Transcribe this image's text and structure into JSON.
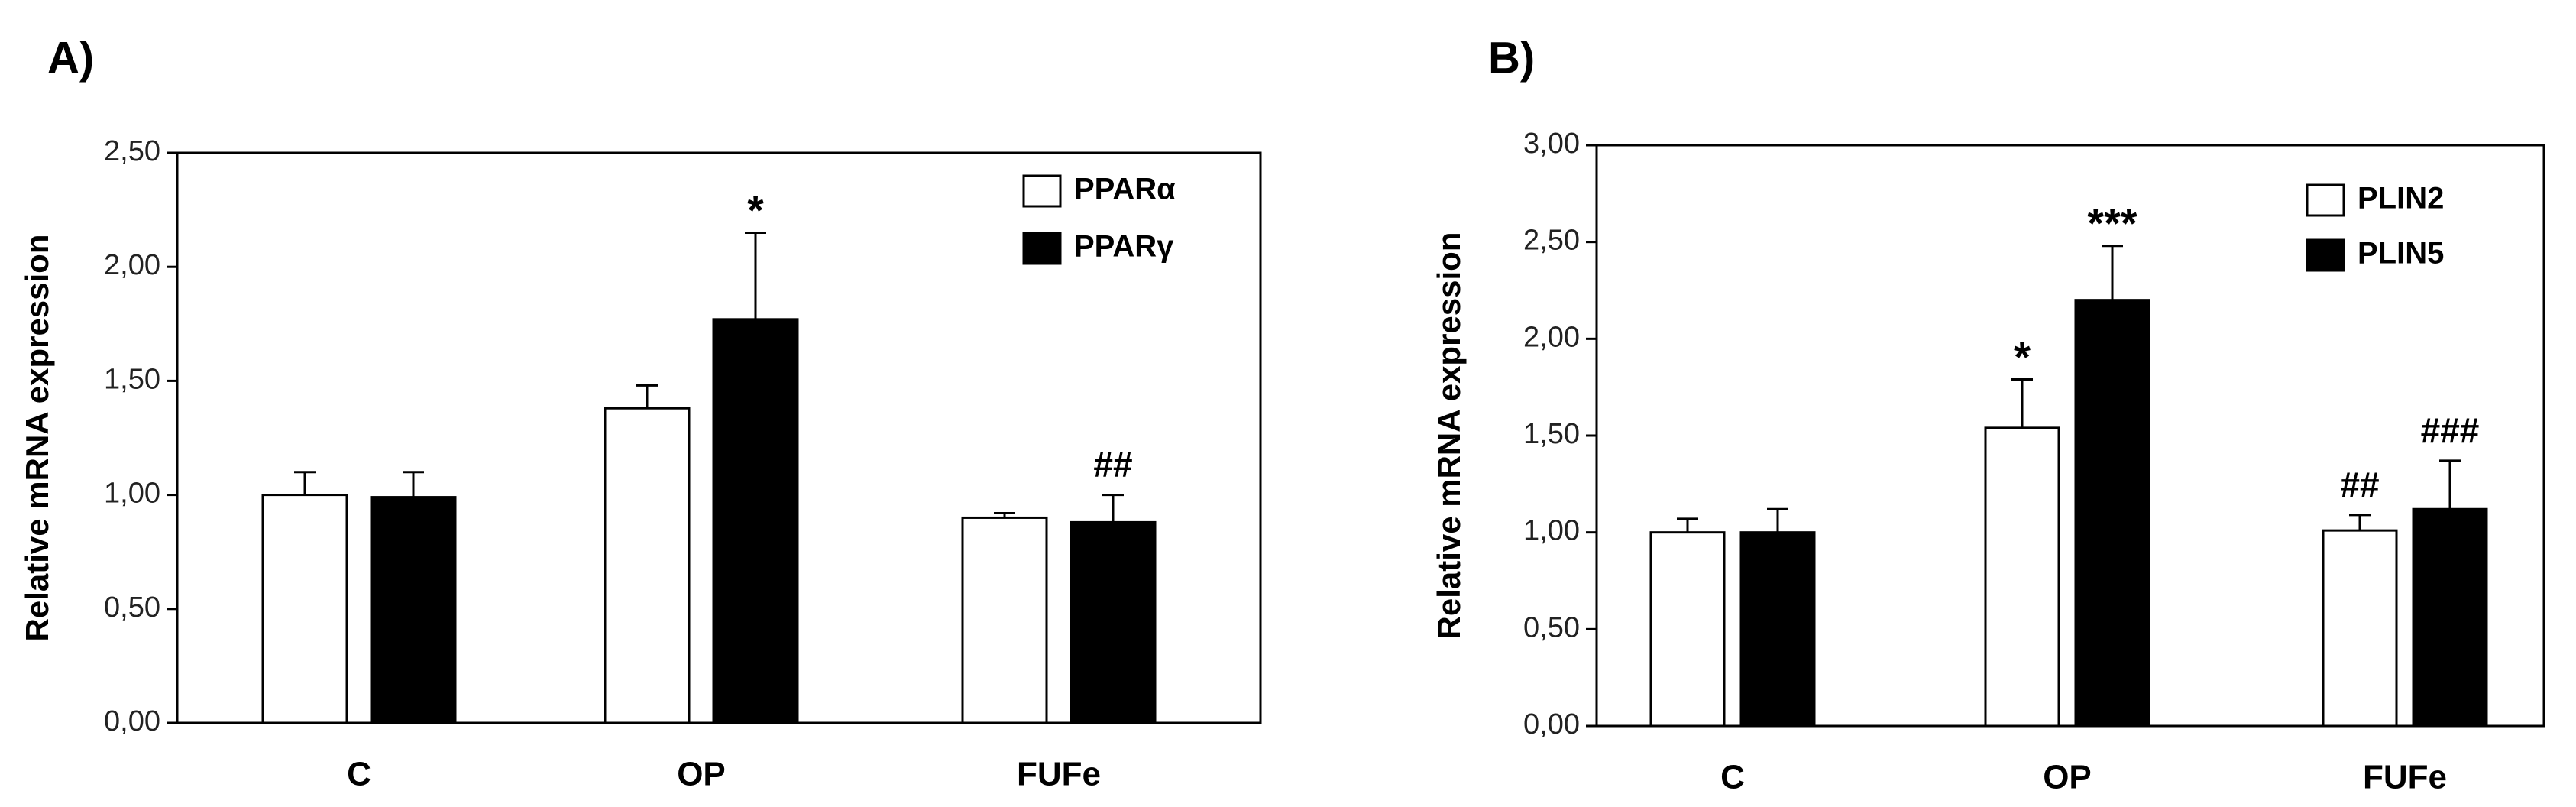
{
  "chart_data": [
    {
      "panel_label": "A)",
      "type": "bar",
      "ylabel": "Relative mRNA expression",
      "ylim": [
        0,
        2.5
      ],
      "yticks": [
        "0,00",
        "0,50",
        "1,00",
        "1,50",
        "2,00",
        "2,50"
      ],
      "categories": [
        "C",
        "OP",
        "FUFe"
      ],
      "legend_position": "top-right",
      "series": [
        {
          "name": "PPARα",
          "fill": "#ffffff",
          "values": [
            1.0,
            1.38,
            0.9
          ],
          "errors": [
            0.1,
            0.1,
            0.02
          ]
        },
        {
          "name": "PPARγ",
          "fill": "#000000",
          "values": [
            0.99,
            1.77,
            0.88
          ],
          "errors": [
            0.11,
            0.38,
            0.12
          ]
        }
      ],
      "annotations": [
        {
          "category": "OP",
          "series": 1,
          "text": "*"
        },
        {
          "category": "FUFe",
          "series": 1,
          "text": "##"
        }
      ]
    },
    {
      "panel_label": "B)",
      "type": "bar",
      "ylabel": "Relative mRNA expression",
      "ylim": [
        0,
        3.0
      ],
      "yticks": [
        "0,00",
        "0,50",
        "1,00",
        "1,50",
        "2,00",
        "2,50",
        "3,00"
      ],
      "categories": [
        "C",
        "OP",
        "FUFe"
      ],
      "legend_position": "top-right",
      "series": [
        {
          "name": "PLIN2",
          "fill": "#ffffff",
          "values": [
            1.0,
            1.54,
            1.01
          ],
          "errors": [
            0.07,
            0.25,
            0.08
          ]
        },
        {
          "name": "PLIN5",
          "fill": "#000000",
          "values": [
            1.0,
            2.2,
            1.12
          ],
          "errors": [
            0.12,
            0.28,
            0.25
          ]
        }
      ],
      "annotations": [
        {
          "category": "OP",
          "series": 0,
          "text": "*"
        },
        {
          "category": "OP",
          "series": 1,
          "text": "***"
        },
        {
          "category": "FUFe",
          "series": 0,
          "text": "##"
        },
        {
          "category": "FUFe",
          "series": 1,
          "text": "###"
        }
      ]
    }
  ]
}
